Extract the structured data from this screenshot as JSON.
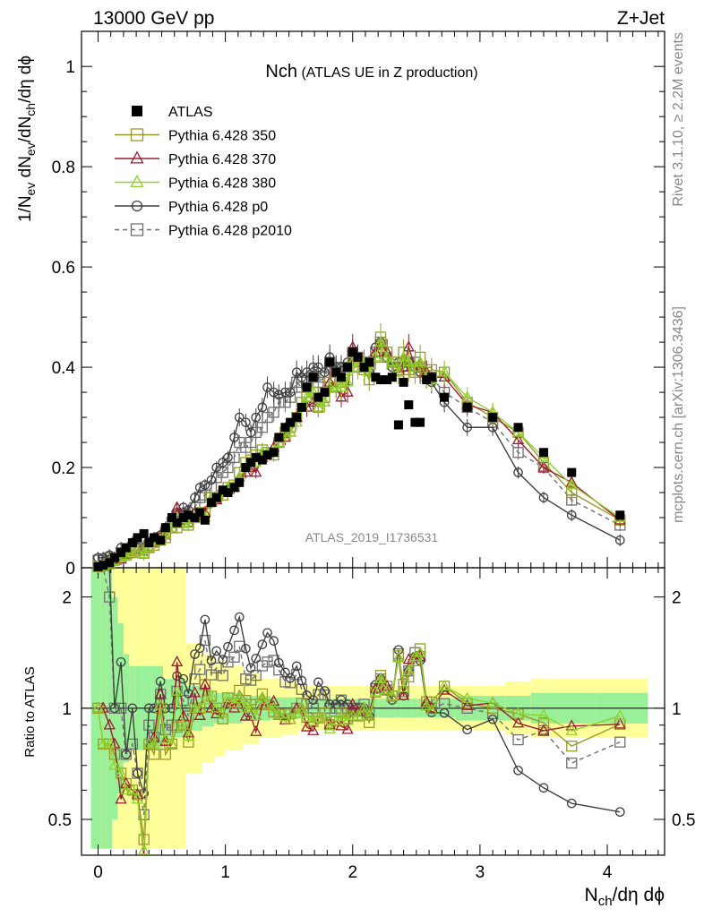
{
  "header": {
    "left": "13000 GeV pp",
    "right": "Z+Jet"
  },
  "side": {
    "rivet": "Rivet 3.1.10, ≥ 2.2M events",
    "mcplots": "mcplots.cern.ch [arXiv:1306.3436]"
  },
  "chart_data": {
    "type": "scatter",
    "title_main": "Nch",
    "title_sub": "(ATLAS UE in Z production)",
    "analysis_label": "ATLAS_2019_I1736531",
    "xlabel": "N_ch/dη dϕ",
    "ylabel": "1/N_ev dN_ev/dN_ch/dη dϕ",
    "ratio_ylabel": "Ratio to ATLAS",
    "xlim": [
      -0.13,
      4.45
    ],
    "ylim": [
      0,
      1.07
    ],
    "ratio_ylim": [
      0.4,
      2.4
    ],
    "main_yticks": [
      0,
      0.2,
      0.4,
      0.6,
      0.8,
      1
    ],
    "main_ytick_labels": [
      "0",
      "0.2",
      "0.4",
      "0.6",
      "0.8",
      "1"
    ],
    "ratio_yticks": [
      0.5,
      1,
      2
    ],
    "ratio_ytick_labels": [
      "0.5",
      "1",
      "2"
    ],
    "xticks": [
      0,
      1,
      2,
      3,
      4
    ],
    "xtick_labels": [
      "0",
      "1",
      "2",
      "3",
      "4"
    ],
    "x": [
      0,
      0.04,
      0.09,
      0.13,
      0.18,
      0.22,
      0.27,
      0.31,
      0.36,
      0.4,
      0.44,
      0.49,
      0.53,
      0.58,
      0.62,
      0.67,
      0.71,
      0.76,
      0.8,
      0.84,
      0.89,
      0.93,
      0.98,
      1.02,
      1.07,
      1.11,
      1.16,
      1.2,
      1.24,
      1.29,
      1.33,
      1.38,
      1.42,
      1.47,
      1.51,
      1.56,
      1.6,
      1.64,
      1.69,
      1.73,
      1.78,
      1.82,
      1.87,
      1.91,
      1.96,
      2.0,
      2.04,
      2.09,
      2.13,
      2.18,
      2.22,
      2.27,
      2.31,
      2.36,
      2.4,
      2.44,
      2.49,
      2.53,
      2.58,
      2.62,
      2.72,
      2.9,
      3.1,
      3.3,
      3.5,
      3.72,
      4.1
    ],
    "legend": {
      "position": "top-left",
      "entries": [
        "ATLAS",
        "Pythia 6.428 350",
        "Pythia 6.428 370",
        "Pythia 6.428 380",
        "Pythia 6.428 p0",
        "Pythia 6.428 p2010"
      ]
    },
    "series": [
      {
        "name": "ATLAS",
        "color": "#000000",
        "marker": "filled-square",
        "values": [
          0.002,
          0.005,
          0.01,
          0.02,
          0.03,
          0.04,
          0.05,
          0.06,
          0.068,
          0.05,
          0.06,
          0.055,
          0.08,
          0.1,
          0.09,
          0.1,
          0.105,
          0.1,
          0.11,
          0.095,
          0.13,
          0.14,
          0.155,
          0.15,
          0.16,
          0.17,
          0.2,
          0.21,
          0.22,
          0.215,
          0.225,
          0.23,
          0.26,
          0.28,
          0.29,
          0.3,
          0.32,
          0.36,
          0.38,
          0.34,
          0.35,
          0.41,
          0.39,
          0.38,
          0.4,
          0.43,
          0.42,
          0.4,
          0.41,
          0.38,
          0.375,
          0.375,
          0.38,
          0.285,
          0.37,
          0.325,
          0.29,
          0.29,
          0.375,
          0.38,
          0.34,
          0.32,
          0.3,
          0.28,
          0.23,
          0.19,
          0.105
        ],
        "band_inner": [
          2.4,
          2.4,
          2.4,
          2.0,
          1.7,
          1.4,
          1.3,
          1.3,
          1.3,
          1.3,
          1.3,
          1.3,
          1.2,
          1.2,
          1.2,
          1.2,
          1.15,
          1.15,
          1.15,
          1.12,
          1.12,
          1.1,
          1.1,
          1.1,
          1.1,
          1.1,
          1.08,
          1.08,
          1.08,
          1.08,
          1.08,
          1.07,
          1.07,
          1.07,
          1.07,
          1.07,
          1.06,
          1.06,
          1.06,
          1.06,
          1.06,
          1.06,
          1.06,
          1.06,
          1.06,
          1.06,
          1.06,
          1.06,
          1.06,
          1.06,
          1.06,
          1.06,
          1.06,
          1.06,
          1.06,
          1.06,
          1.06,
          1.06,
          1.06,
          1.06,
          1.06,
          1.08,
          1.08,
          1.08,
          1.1,
          1.1,
          1.1
        ],
        "band_outer": [
          2.4,
          2.4,
          2.4,
          2.4,
          2.4,
          2.4,
          2.4,
          2.4,
          2.4,
          2.4,
          2.4,
          2.4,
          2.4,
          2.4,
          2.4,
          2.4,
          1.5,
          1.5,
          1.5,
          1.4,
          1.4,
          1.35,
          1.35,
          1.3,
          1.3,
          1.3,
          1.25,
          1.25,
          1.25,
          1.2,
          1.2,
          1.2,
          1.2,
          1.18,
          1.18,
          1.18,
          1.15,
          1.15,
          1.15,
          1.15,
          1.15,
          1.15,
          1.15,
          1.15,
          1.15,
          1.15,
          1.15,
          1.15,
          1.15,
          1.15,
          1.15,
          1.15,
          1.15,
          1.15,
          1.15,
          1.15,
          1.15,
          1.15,
          1.15,
          1.15,
          1.15,
          1.15,
          1.15,
          1.18,
          1.2,
          1.2,
          1.2
        ]
      },
      {
        "name": "Pythia 6.428 350",
        "color": "#9a9a2a",
        "marker": "open-square",
        "line": "solid",
        "values": [
          0.002,
          0.004,
          0.008,
          0.015,
          0.02,
          0.025,
          0.03,
          0.035,
          0.03,
          0.04,
          0.045,
          0.055,
          0.06,
          0.08,
          0.08,
          0.09,
          0.085,
          0.1,
          0.11,
          0.11,
          0.14,
          0.14,
          0.145,
          0.16,
          0.165,
          0.19,
          0.21,
          0.215,
          0.225,
          0.235,
          0.23,
          0.225,
          0.25,
          0.27,
          0.28,
          0.3,
          0.33,
          0.34,
          0.35,
          0.32,
          0.34,
          0.37,
          0.36,
          0.37,
          0.375,
          0.41,
          0.4,
          0.395,
          0.375,
          0.42,
          0.46,
          0.43,
          0.41,
          0.395,
          0.43,
          0.395,
          0.39,
          0.42,
          0.39,
          0.395,
          0.39,
          0.33,
          0.3,
          0.27,
          0.21,
          0.15,
          0.095
        ]
      },
      {
        "name": "Pythia 6.428 370",
        "color": "#9b1b30",
        "marker": "open-triangle",
        "line": "solid",
        "values": [
          0.002,
          0.005,
          0.009,
          0.016,
          0.017,
          0.025,
          0.03,
          0.035,
          0.027,
          0.04,
          0.05,
          0.06,
          0.065,
          0.08,
          0.12,
          0.095,
          0.09,
          0.11,
          0.105,
          0.11,
          0.13,
          0.135,
          0.15,
          0.155,
          0.16,
          0.18,
          0.19,
          0.2,
          0.19,
          0.22,
          0.23,
          0.24,
          0.25,
          0.26,
          0.27,
          0.3,
          0.32,
          0.32,
          0.33,
          0.32,
          0.33,
          0.37,
          0.36,
          0.34,
          0.35,
          0.44,
          0.41,
          0.4,
          0.39,
          0.43,
          0.45,
          0.43,
          0.41,
          0.39,
          0.4,
          0.44,
          0.4,
          0.4,
          0.39,
          0.38,
          0.38,
          0.325,
          0.31,
          0.255,
          0.2,
          0.17,
          0.095
        ]
      },
      {
        "name": "Pythia 6.428 380",
        "color": "#8fd12a",
        "marker": "open-triangle",
        "line": "solid",
        "values": [
          0.002,
          0.004,
          0.008,
          0.014,
          0.02,
          0.024,
          0.03,
          0.034,
          0.028,
          0.04,
          0.048,
          0.056,
          0.066,
          0.08,
          0.1,
          0.09,
          0.088,
          0.1,
          0.11,
          0.1,
          0.14,
          0.14,
          0.15,
          0.16,
          0.165,
          0.18,
          0.2,
          0.21,
          0.21,
          0.23,
          0.23,
          0.23,
          0.25,
          0.265,
          0.27,
          0.29,
          0.32,
          0.34,
          0.35,
          0.32,
          0.33,
          0.36,
          0.36,
          0.36,
          0.37,
          0.41,
          0.4,
          0.4,
          0.39,
          0.42,
          0.45,
          0.42,
          0.41,
          0.39,
          0.42,
          0.41,
          0.4,
          0.41,
          0.38,
          0.375,
          0.39,
          0.34,
          0.31,
          0.27,
          0.22,
          0.165,
          0.1
        ]
      },
      {
        "name": "Pythia 6.428 p0",
        "color": "#404040",
        "marker": "open-circle",
        "line": "solid",
        "values": [
          0.02,
          0.02,
          0.025,
          0.02,
          0.04,
          0.03,
          0.05,
          0.04,
          0.04,
          0.05,
          0.06,
          0.065,
          0.08,
          0.1,
          0.11,
          0.12,
          0.115,
          0.14,
          0.16,
          0.165,
          0.175,
          0.2,
          0.21,
          0.22,
          0.26,
          0.3,
          0.29,
          0.27,
          0.3,
          0.32,
          0.36,
          0.35,
          0.345,
          0.35,
          0.35,
          0.39,
          0.38,
          0.39,
          0.4,
          0.4,
          0.39,
          0.42,
          0.4,
          0.4,
          0.41,
          0.42,
          0.42,
          0.4,
          0.39,
          0.44,
          0.45,
          0.42,
          0.4,
          0.41,
          0.4,
          0.41,
          0.4,
          0.39,
          0.38,
          0.37,
          0.33,
          0.28,
          0.28,
          0.19,
          0.14,
          0.105,
          0.055
        ]
      },
      {
        "name": "Pythia 6.428 p2010",
        "color": "#707070",
        "marker": "open-square",
        "line": "dashed",
        "values": [
          0.015,
          0.015,
          0.02,
          0.02,
          0.03,
          0.03,
          0.04,
          0.04,
          0.035,
          0.045,
          0.05,
          0.06,
          0.07,
          0.09,
          0.1,
          0.105,
          0.1,
          0.12,
          0.14,
          0.145,
          0.16,
          0.18,
          0.19,
          0.2,
          0.22,
          0.25,
          0.24,
          0.25,
          0.27,
          0.28,
          0.3,
          0.31,
          0.33,
          0.33,
          0.34,
          0.37,
          0.36,
          0.37,
          0.38,
          0.37,
          0.38,
          0.41,
          0.39,
          0.4,
          0.4,
          0.43,
          0.42,
          0.41,
          0.4,
          0.43,
          0.45,
          0.42,
          0.41,
          0.4,
          0.41,
          0.41,
          0.41,
          0.4,
          0.39,
          0.38,
          0.35,
          0.32,
          0.29,
          0.23,
          0.2,
          0.135,
          0.085
        ]
      }
    ]
  }
}
